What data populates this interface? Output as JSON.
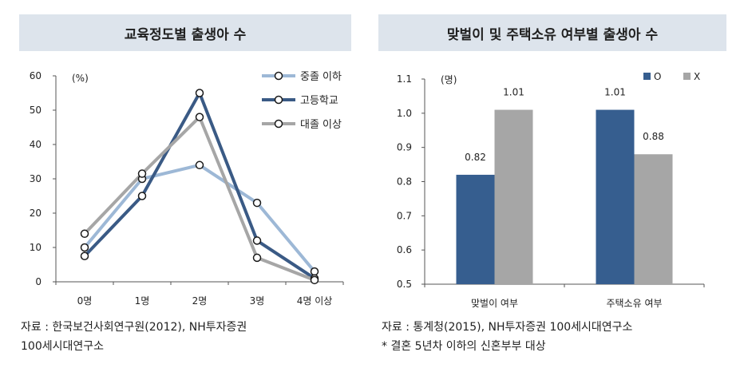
{
  "left": {
    "title": "교육정도별 출생아 수",
    "source_line1": "자료 : 한국보건사회연구원(2012), NH투자증권",
    "source_line2": "100세시대연구소"
  },
  "right": {
    "title": "맞벌이 및 주택소유 여부별 출생아 수",
    "source_line1": "자료 : 통계청(2015), NH투자증권 100세시대연구소",
    "source_line2": "* 결혼 5년차 이하의 신혼부부 대상"
  },
  "chart_data": [
    {
      "type": "line",
      "title": "교육정도별 출생아 수",
      "unit": "(%)",
      "categories": [
        "0명",
        "1명",
        "2명",
        "3명",
        "4명 이상"
      ],
      "ylim": [
        0,
        60
      ],
      "yticks": [
        "0",
        "10",
        "20",
        "30",
        "40",
        "50",
        "60"
      ],
      "legend_position": "top-right",
      "series": [
        {
          "name": "중졸 이하",
          "color": "#9db8d6",
          "values": [
            10,
            30,
            34,
            23,
            3
          ]
        },
        {
          "name": "고등학교",
          "color": "#3a5a85",
          "values": [
            7.5,
            25,
            55,
            12,
            1
          ]
        },
        {
          "name": "대졸 이상",
          "color": "#a6a6a6",
          "values": [
            14,
            31.5,
            48,
            7,
            0.5
          ]
        }
      ]
    },
    {
      "type": "bar",
      "title": "맞벌이 및 주택소유 여부별 출생아 수",
      "unit": "(명)",
      "categories": [
        "맞벌이 여부",
        "주택소유 여부"
      ],
      "ylim": [
        0.5,
        1.1
      ],
      "yticks": [
        "0.5",
        "0.6",
        "0.7",
        "0.8",
        "0.9",
        "1.0",
        "1.1"
      ],
      "legend_position": "top-right",
      "series": [
        {
          "name": "O",
          "color": "#365e8f",
          "values": [
            0.82,
            1.01
          ],
          "labels": [
            "0.82",
            "1.01"
          ]
        },
        {
          "name": "X",
          "color": "#a6a6a6",
          "values": [
            1.01,
            0.88
          ],
          "labels": [
            "1.01",
            "0.88"
          ]
        }
      ]
    }
  ]
}
